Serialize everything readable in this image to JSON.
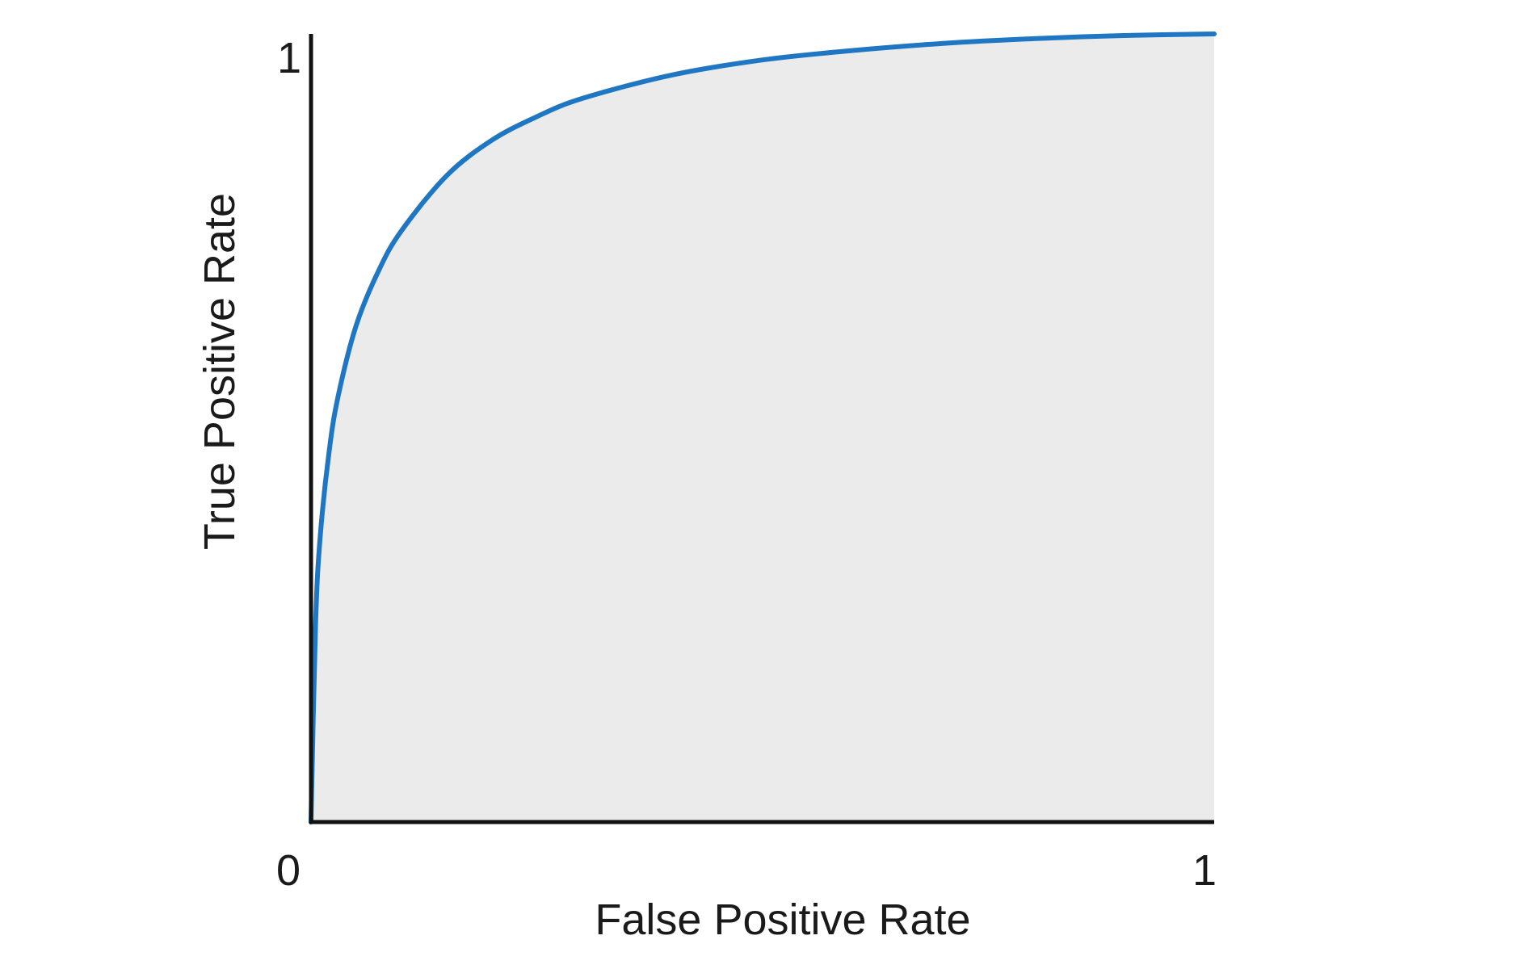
{
  "chart_data": {
    "type": "area",
    "xlabel": "False Positive Rate",
    "ylabel": "True Positive Rate",
    "xlim": [
      0,
      1
    ],
    "ylim": [
      0,
      1
    ],
    "x_ticks": [
      "0",
      "1"
    ],
    "y_ticks": [
      "1"
    ],
    "grid": false,
    "legend": "none",
    "series": [
      {
        "x": [
          0,
          0.005,
          0.01,
          0.02,
          0.03,
          0.05,
          0.075,
          0.1,
          0.15,
          0.2,
          0.25,
          0.3,
          0.4,
          0.5,
          0.6,
          0.7,
          0.8,
          0.9,
          1.0
        ],
        "y": [
          0,
          0.25,
          0.36,
          0.47,
          0.54,
          0.63,
          0.7,
          0.75,
          0.82,
          0.865,
          0.895,
          0.918,
          0.948,
          0.967,
          0.979,
          0.988,
          0.994,
          0.998,
          1.0
        ]
      }
    ],
    "colors": {
      "curve": "#1f77c4",
      "area_fill": "#ebebeb",
      "axis": "#111111"
    }
  }
}
